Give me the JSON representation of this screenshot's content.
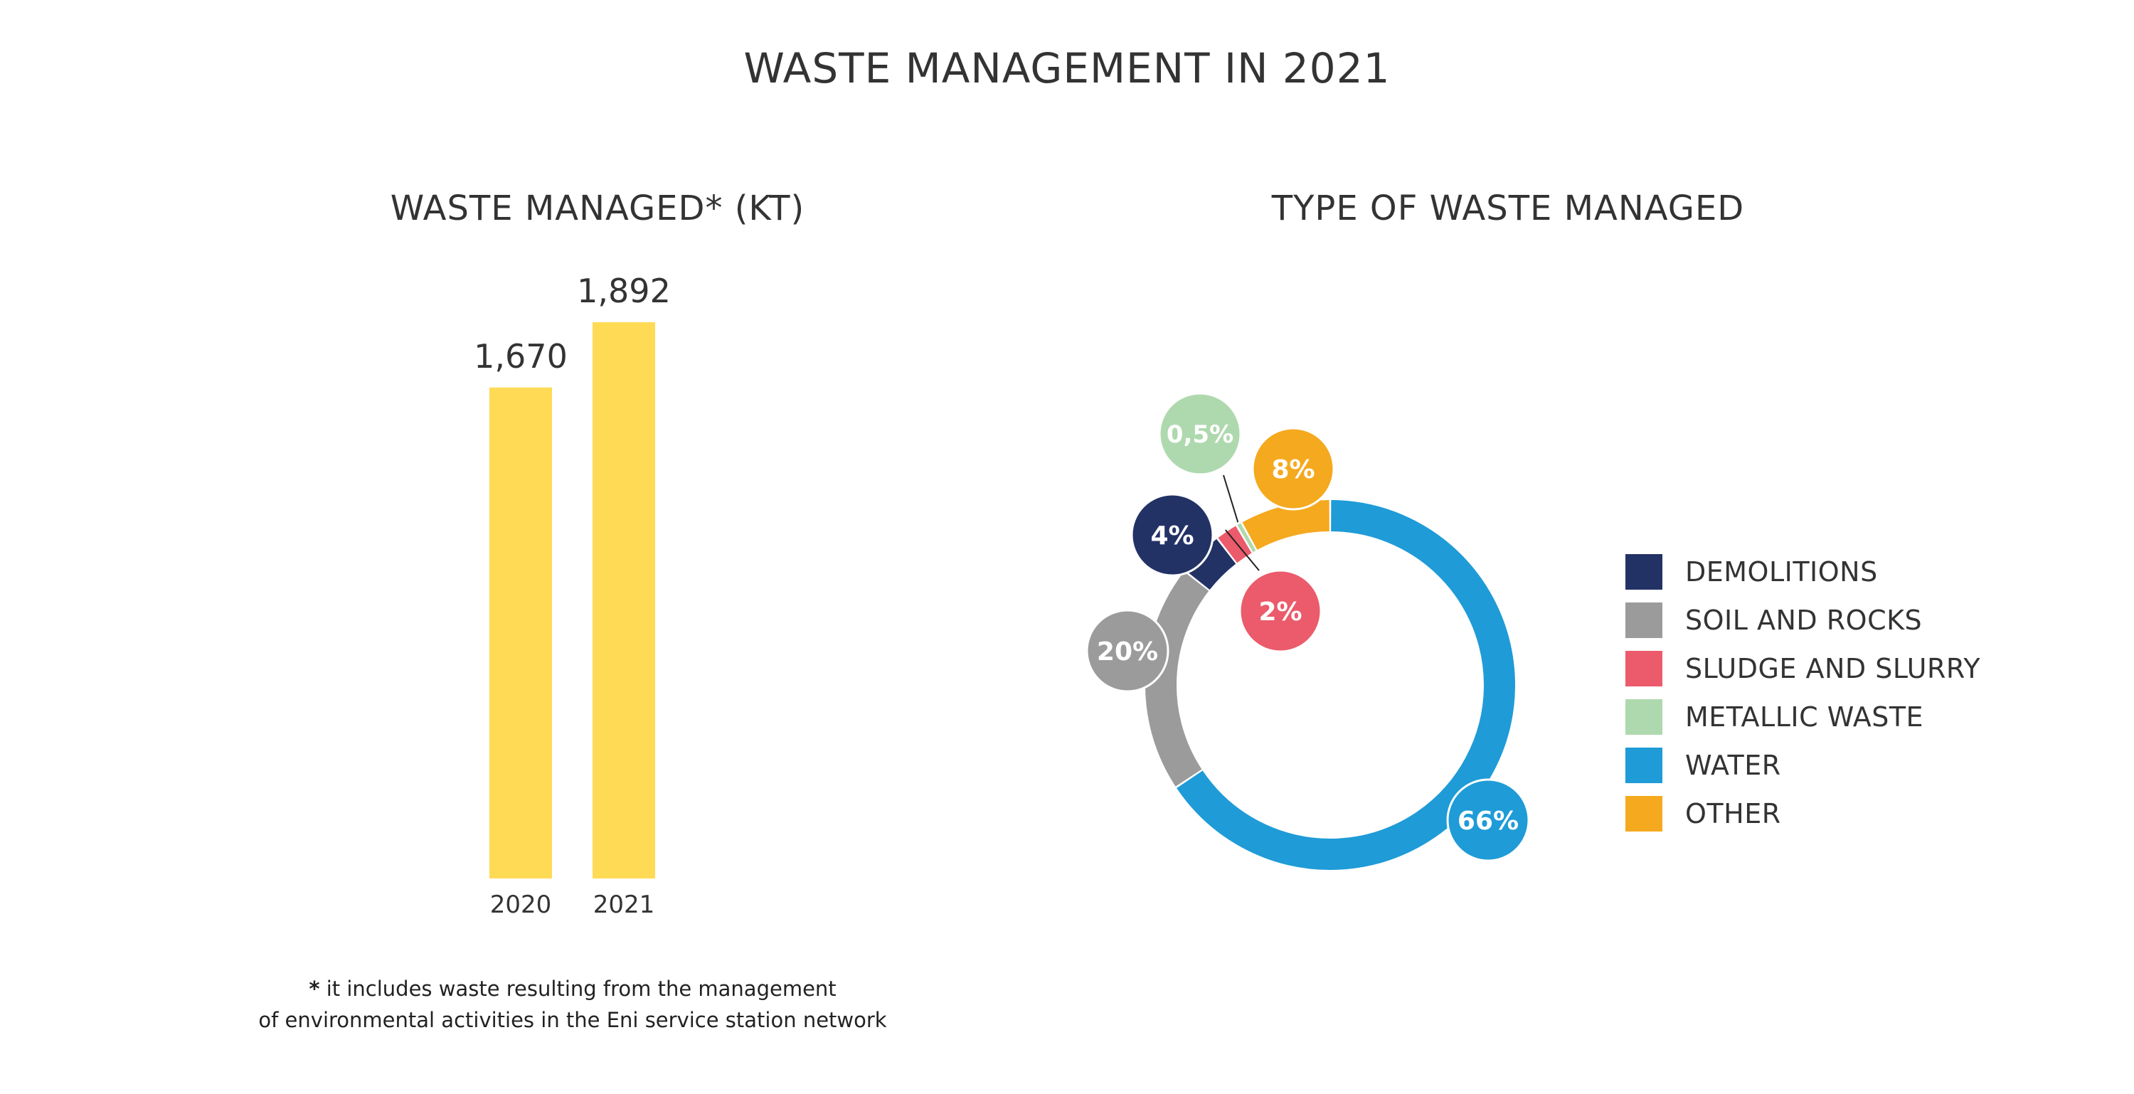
{
  "title": "WASTE MANAGEMENT IN 2021",
  "footnote": {
    "marker": "*",
    "line1": "it includes waste resulting from the management",
    "line2": "of environmental activities in the Eni service station network"
  },
  "chart_data": [
    {
      "type": "bar",
      "title": "WASTE MANAGED* (KT)",
      "categories": [
        "2020",
        "2021"
      ],
      "values": [
        1670,
        1892
      ],
      "value_labels": [
        "1,670",
        "1,892"
      ],
      "ylim": [
        0,
        1892
      ],
      "color": "#FFDA55"
    },
    {
      "type": "pie",
      "subtype": "donut",
      "title": "TYPE OF WASTE MANAGED",
      "labels": [
        "DEMOLITIONS",
        "SOIL AND ROCKS",
        "SLUDGE AND SLURRY",
        "METALLIC WASTE",
        "WATER",
        "OTHER"
      ],
      "values": [
        4,
        20,
        2,
        0.5,
        66,
        8
      ],
      "value_labels": [
        "4%",
        "20%",
        "2%",
        "0,5%",
        "66%",
        "8%"
      ],
      "colors": [
        "#233265",
        "#9B9B9B",
        "#EB5B6B",
        "#AED9AE",
        "#1F9BD7",
        "#F5A91E"
      ],
      "legend_position": "right"
    }
  ]
}
